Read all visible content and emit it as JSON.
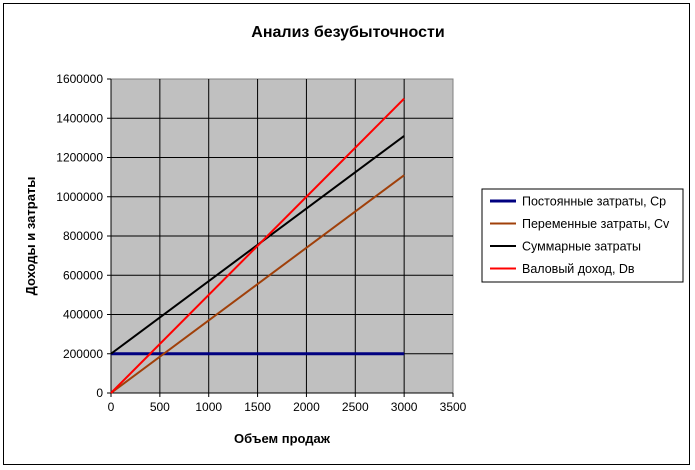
{
  "chart_data": {
    "type": "line",
    "title": "Анализ безубыточности",
    "xlabel": "Объем продаж",
    "ylabel": "Доходы и затраты",
    "xlim": [
      0,
      3500
    ],
    "ylim": [
      0,
      1600000
    ],
    "xticks": [
      0,
      500,
      1000,
      1500,
      2000,
      2500,
      3000,
      3500
    ],
    "yticks": [
      0,
      200000,
      400000,
      600000,
      800000,
      1000000,
      1200000,
      1400000,
      1600000
    ],
    "x_tick_labels": [
      "0",
      "500",
      "1000",
      "1500",
      "2000",
      "2500",
      "3000",
      "3500"
    ],
    "y_tick_labels": [
      "0",
      "200000",
      "400000",
      "600000",
      "800000",
      "1000000",
      "1200000",
      "1400000",
      "1600000"
    ],
    "grid": true,
    "plot_background": "#c0c0c0",
    "legend_position": "right",
    "series": [
      {
        "name": "Постоянные затраты, Ср",
        "color": "#000080",
        "x": [
          0,
          3000
        ],
        "y": [
          200000,
          200000
        ]
      },
      {
        "name": "Переменные затраты, Сv",
        "color": "#a0400a",
        "x": [
          0,
          3000
        ],
        "y": [
          0,
          1110000
        ]
      },
      {
        "name": "Суммарные затраты",
        "color": "#000000",
        "x": [
          0,
          3000
        ],
        "y": [
          200000,
          1310000
        ]
      },
      {
        "name": "Валовый доход, Dв",
        "color": "#ff0000",
        "x": [
          0,
          3000
        ],
        "y": [
          0,
          1500000
        ]
      }
    ]
  }
}
